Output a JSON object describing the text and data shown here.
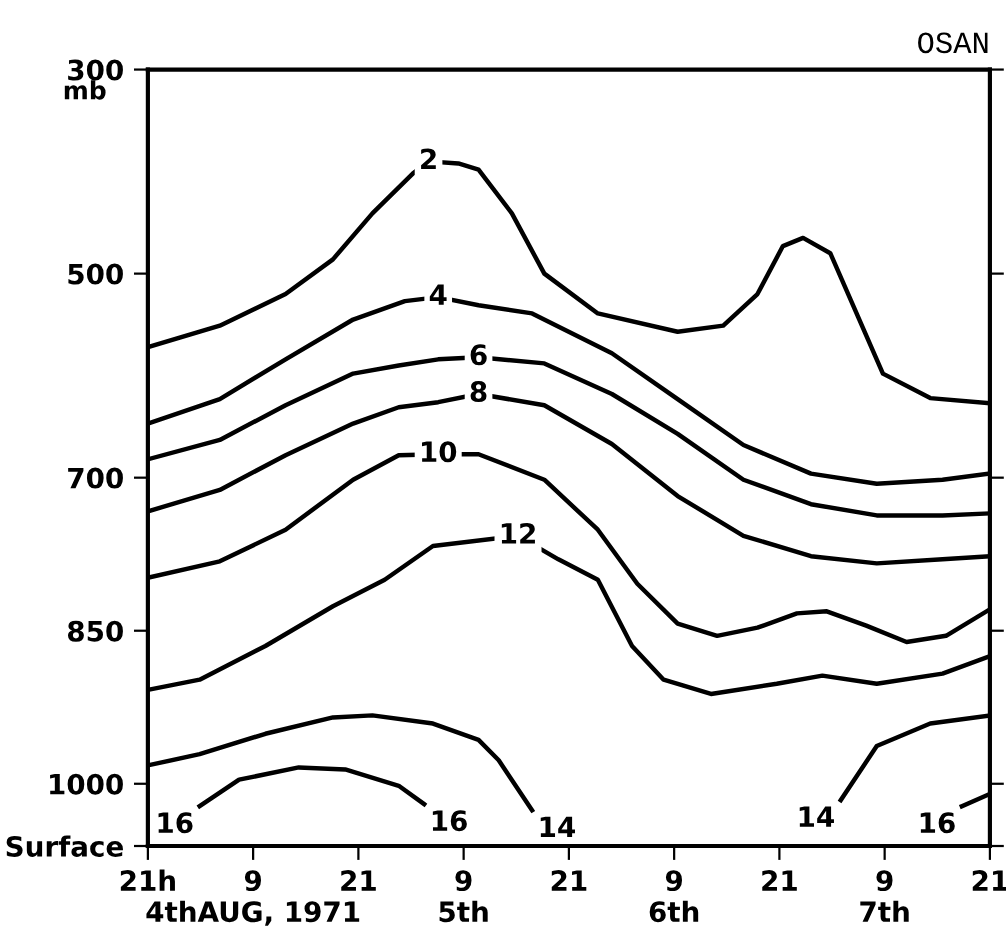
{
  "chart_data": {
    "type": "line",
    "title": "OSAN",
    "ylabel": "mb",
    "xlim": [
      "1971-08-03T21:00",
      "1971-08-07T21:00"
    ],
    "xticks": [
      {
        "value": "1971-08-03T21:00",
        "label": "21h"
      },
      {
        "value": "1971-08-04T09:00",
        "label": "9\n4thAUG, 1971"
      },
      {
        "value": "1971-08-04T21:00",
        "label": "21"
      },
      {
        "value": "1971-08-05T09:00",
        "label": "9\n5th"
      },
      {
        "value": "1971-08-05T21:00",
        "label": "21"
      },
      {
        "value": "1971-08-06T09:00",
        "label": "9\n6th"
      },
      {
        "value": "1971-08-06T21:00",
        "label": "21"
      },
      {
        "value": "1971-08-07T09:00",
        "label": "9\n7th"
      },
      {
        "value": "1971-08-07T21:00",
        "label": "21"
      }
    ],
    "ylim": [
      1061,
      300
    ],
    "yticks": [
      300,
      500,
      700,
      850,
      1000,
      {
        "value": 1061,
        "label": "Surface"
      }
    ],
    "grid": false,
    "legend": false,
    "marker": "none",
    "line_style": "solid",
    "series": [
      {
        "name": "2",
        "color": "#000000",
        "x": [
          "1971-08-03T21:00",
          "1971-08-04T05:12",
          "1971-08-04T12:42",
          "1971-08-04T18:06",
          "1971-08-04T22:36",
          "1971-08-05T03:12",
          "1971-08-05T05:00",
          "1971-08-05T08:24",
          "1971-08-05T10:42",
          "1971-08-05T14:30",
          "1971-08-05T18:12",
          "1971-08-06T00:18",
          "1971-08-06T09:24",
          "1971-08-06T14:36",
          "1971-08-06T18:30",
          "1971-08-06T21:24",
          "1971-08-06T23:42",
          "1971-08-07T02:48",
          "1971-08-07T05:48",
          "1971-08-07T08:48",
          "1971-08-07T14:12",
          "1971-08-07T21:00"
        ],
        "values": [
          572,
          551,
          520,
          486,
          441,
          402,
          390,
          392,
          398,
          441,
          500,
          539,
          557,
          551,
          520,
          473,
          465,
          480,
          539,
          598,
          622,
          627
        ]
      },
      {
        "name": "4",
        "color": "#000000",
        "x": [
          "1971-08-03T21:00",
          "1971-08-04T05:12",
          "1971-08-04T12:42",
          "1971-08-04T20:24",
          "1971-08-05T02:18",
          "1971-08-05T06:06",
          "1971-08-05T10:42",
          "1971-08-05T16:48",
          "1971-08-06T01:54",
          "1971-08-06T09:24",
          "1971-08-06T16:54",
          "1971-08-07T00:36",
          "1971-08-07T08:06",
          "1971-08-07T15:36",
          "1971-08-07T21:00"
        ],
        "values": [
          647,
          623,
          584,
          545,
          527,
          523,
          531,
          539,
          578,
          623,
          668,
          696,
          706,
          702,
          696
        ]
      },
      {
        "name": "6",
        "color": "#000000",
        "x": [
          "1971-08-03T21:00",
          "1971-08-04T05:12",
          "1971-08-04T12:42",
          "1971-08-04T20:24",
          "1971-08-05T01:36",
          "1971-08-05T06:06",
          "1971-08-05T10:42",
          "1971-08-05T18:12",
          "1971-08-06T01:54",
          "1971-08-06T09:24",
          "1971-08-06T16:54",
          "1971-08-07T00:36",
          "1971-08-07T08:06",
          "1971-08-07T15:36",
          "1971-08-07T21:00"
        ],
        "values": [
          682,
          663,
          629,
          598,
          590,
          584,
          582,
          588,
          618,
          657,
          702,
          726,
          737,
          737,
          735
        ]
      },
      {
        "name": "8",
        "color": "#000000",
        "x": [
          "1971-08-03T21:00",
          "1971-08-04T05:12",
          "1971-08-04T12:42",
          "1971-08-04T20:24",
          "1971-08-05T01:36",
          "1971-08-05T06:06",
          "1971-08-05T10:42",
          "1971-08-05T18:12",
          "1971-08-06T01:54",
          "1971-08-06T09:24",
          "1971-08-06T16:54",
          "1971-08-07T00:36",
          "1971-08-07T08:06",
          "1971-08-07T15:36",
          "1971-08-07T21:00"
        ],
        "values": [
          733,
          712,
          678,
          647,
          631,
          626,
          618,
          629,
          667,
          718,
          757,
          777,
          784,
          780,
          777
        ]
      },
      {
        "name": "10",
        "color": "#000000",
        "x": [
          "1971-08-03T21:00",
          "1971-08-04T05:12",
          "1971-08-04T12:42",
          "1971-08-04T20:24",
          "1971-08-05T01:36",
          "1971-08-05T06:06",
          "1971-08-05T10:42",
          "1971-08-05T18:12",
          "1971-08-06T00:18",
          "1971-08-06T04:48",
          "1971-08-06T09:24",
          "1971-08-06T13:54",
          "1971-08-06T18:30",
          "1971-08-06T23:00",
          "1971-08-07T02:24",
          "1971-08-07T06:54",
          "1971-08-07T11:30",
          "1971-08-07T16:00",
          "1971-08-07T21:00"
        ],
        "values": [
          798,
          782,
          751,
          702,
          678,
          677,
          677,
          702,
          751,
          804,
          843,
          855,
          847,
          833,
          831,
          845,
          861,
          855,
          829
        ]
      },
      {
        "name": "12",
        "color": "#000000",
        "x": [
          "1971-08-03T21:00",
          "1971-08-04T02:54",
          "1971-08-04T10:24",
          "1971-08-04T18:06",
          "1971-08-05T00:00",
          "1971-08-05T05:30",
          "1971-08-05T15:12",
          "1971-08-05T19:48",
          "1971-08-06T00:18",
          "1971-08-06T04:12",
          "1971-08-06T07:48",
          "1971-08-06T13:12",
          "1971-08-06T20:42",
          "1971-08-07T01:54",
          "1971-08-07T08:06",
          "1971-08-07T15:36",
          "1971-08-07T21:00"
        ],
        "values": [
          908,
          898,
          865,
          826,
          800,
          767,
          757,
          780,
          800,
          865,
          898,
          912,
          902,
          894,
          902,
          892,
          875
        ]
      },
      {
        "name": "14",
        "color": "#000000",
        "x": [
          "1971-08-03T21:00",
          "1971-08-04T02:54",
          "1971-08-04T10:24",
          "1971-08-04T18:06",
          "1971-08-04T22:36",
          "1971-08-05T05:30",
          "1971-08-05T10:42",
          "1971-08-05T13:00",
          "1971-08-05T16:48",
          "1971-08-06T09:00",
          "1971-08-07T04:00",
          "1971-08-07T08:06",
          "1971-08-07T14:12",
          "1971-08-07T21:00"
        ],
        "values": [
          982,
          971,
          951,
          935,
          933,
          941,
          957,
          977,
          1026,
          null,
          1016,
          963,
          941,
          933
        ]
      },
      {
        "name": "16",
        "color": "#000000",
        "x": [
          "1971-08-04T02:54",
          "1971-08-04T07:24",
          "1971-08-04T14:12",
          "1971-08-04T19:30",
          "1971-08-05T01:36",
          "1971-08-05T04:30",
          "1971-08-06T09:00",
          "1971-08-07T17:48",
          "1971-08-07T21:00"
        ],
        "values": [
          1022,
          996,
          984,
          986,
          1002,
          1020,
          null,
          1022,
          1010
        ]
      }
    ]
  }
}
